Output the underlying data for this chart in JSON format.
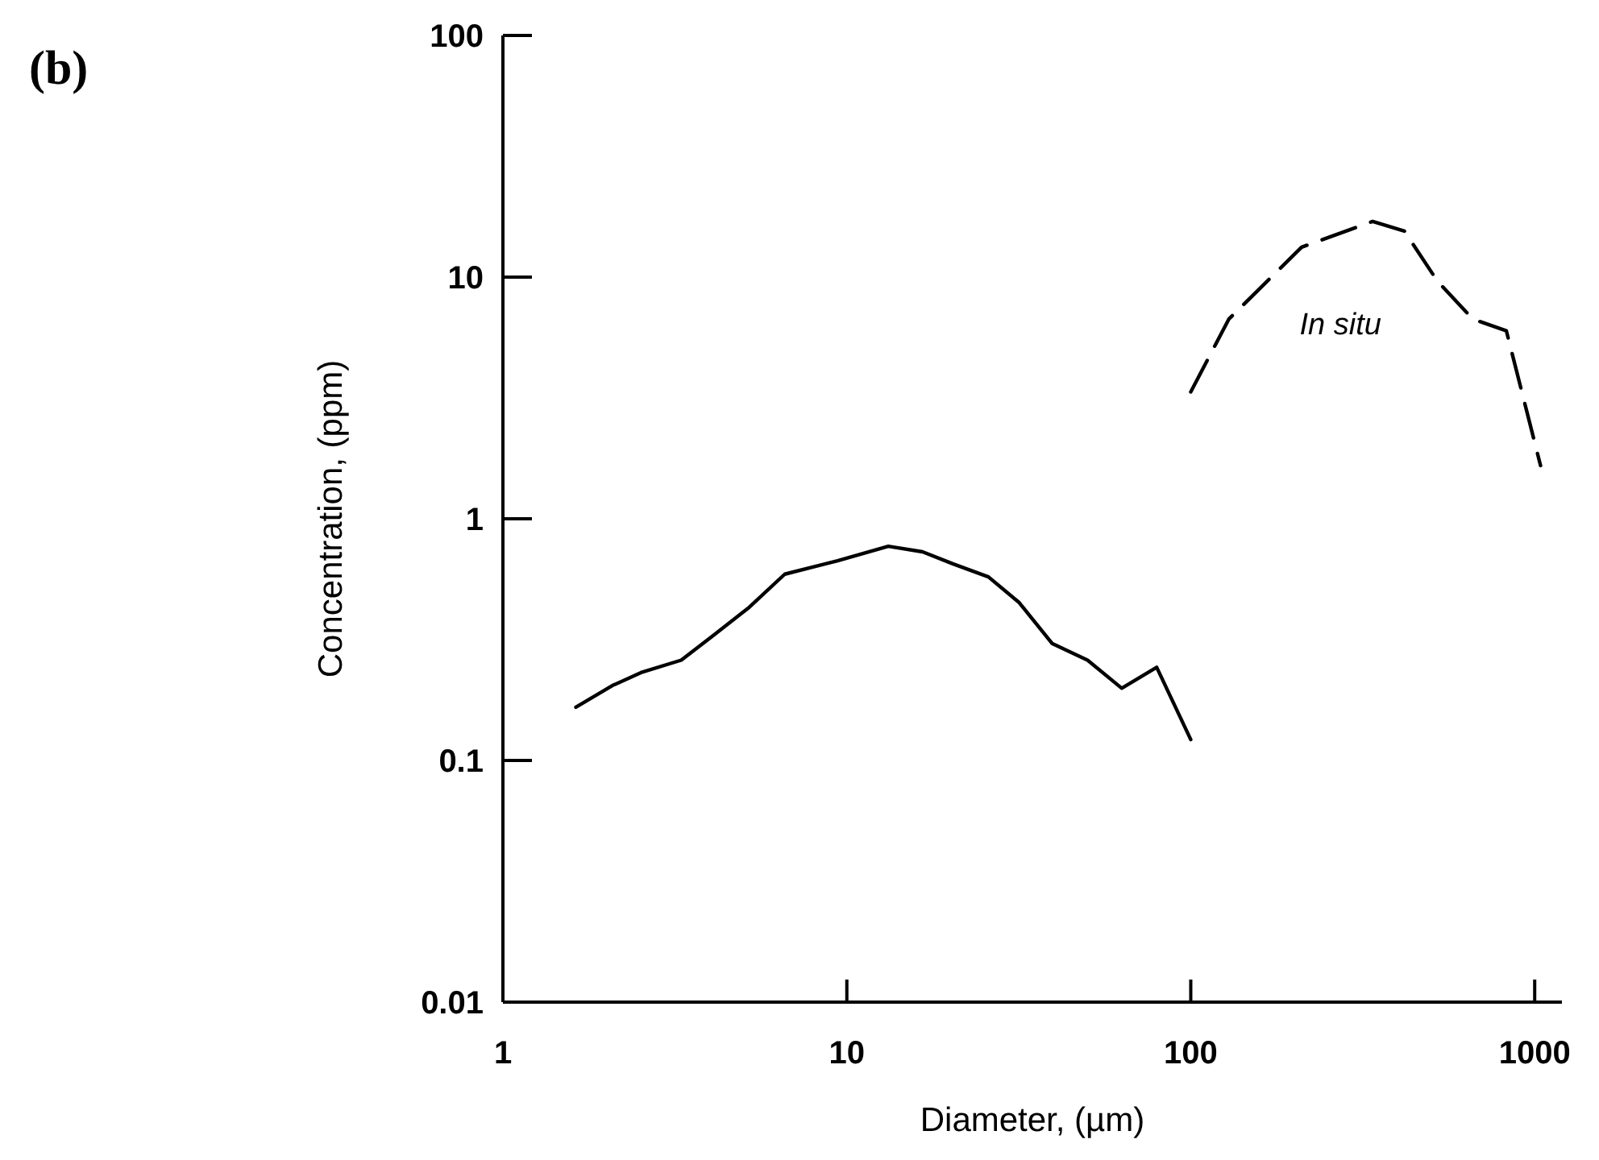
{
  "chart_data": {
    "type": "line",
    "title": "(b)",
    "xlabel": "Diameter, (µm)",
    "ylabel": "Concentration, (ppm)",
    "log": "xy",
    "xlim": [
      1,
      1200
    ],
    "ylim": [
      0.01,
      100
    ],
    "xticks": [
      1,
      10,
      100,
      1000
    ],
    "yticks": [
      0.01,
      0.1,
      1,
      10,
      100
    ],
    "grid": false,
    "marker": "none",
    "series": [
      {
        "color": "#000000",
        "line_style": "solid",
        "x": [
          1.63,
          2.08,
          2.52,
          3.3,
          4.1,
          5.2,
          6.6,
          9.4,
          13.2,
          16.6,
          20.4,
          25.8,
          31.7,
          39.5,
          50.1,
          63,
          79.6,
          100
        ],
        "values": [
          0.166,
          0.204,
          0.231,
          0.26,
          0.33,
          0.43,
          0.59,
          0.67,
          0.77,
          0.73,
          0.65,
          0.575,
          0.45,
          0.305,
          0.26,
          0.199,
          0.243,
          0.122
        ]
      },
      {
        "name": "In situ",
        "color": "#000000",
        "line_style": "dashed",
        "x": [
          100,
          129,
          210,
          338,
          418,
          522,
          661,
          827,
          1040
        ],
        "values": [
          3.35,
          6.7,
          13.3,
          17.0,
          15.5,
          9.6,
          6.7,
          6.0,
          1.66
        ]
      }
    ]
  }
}
